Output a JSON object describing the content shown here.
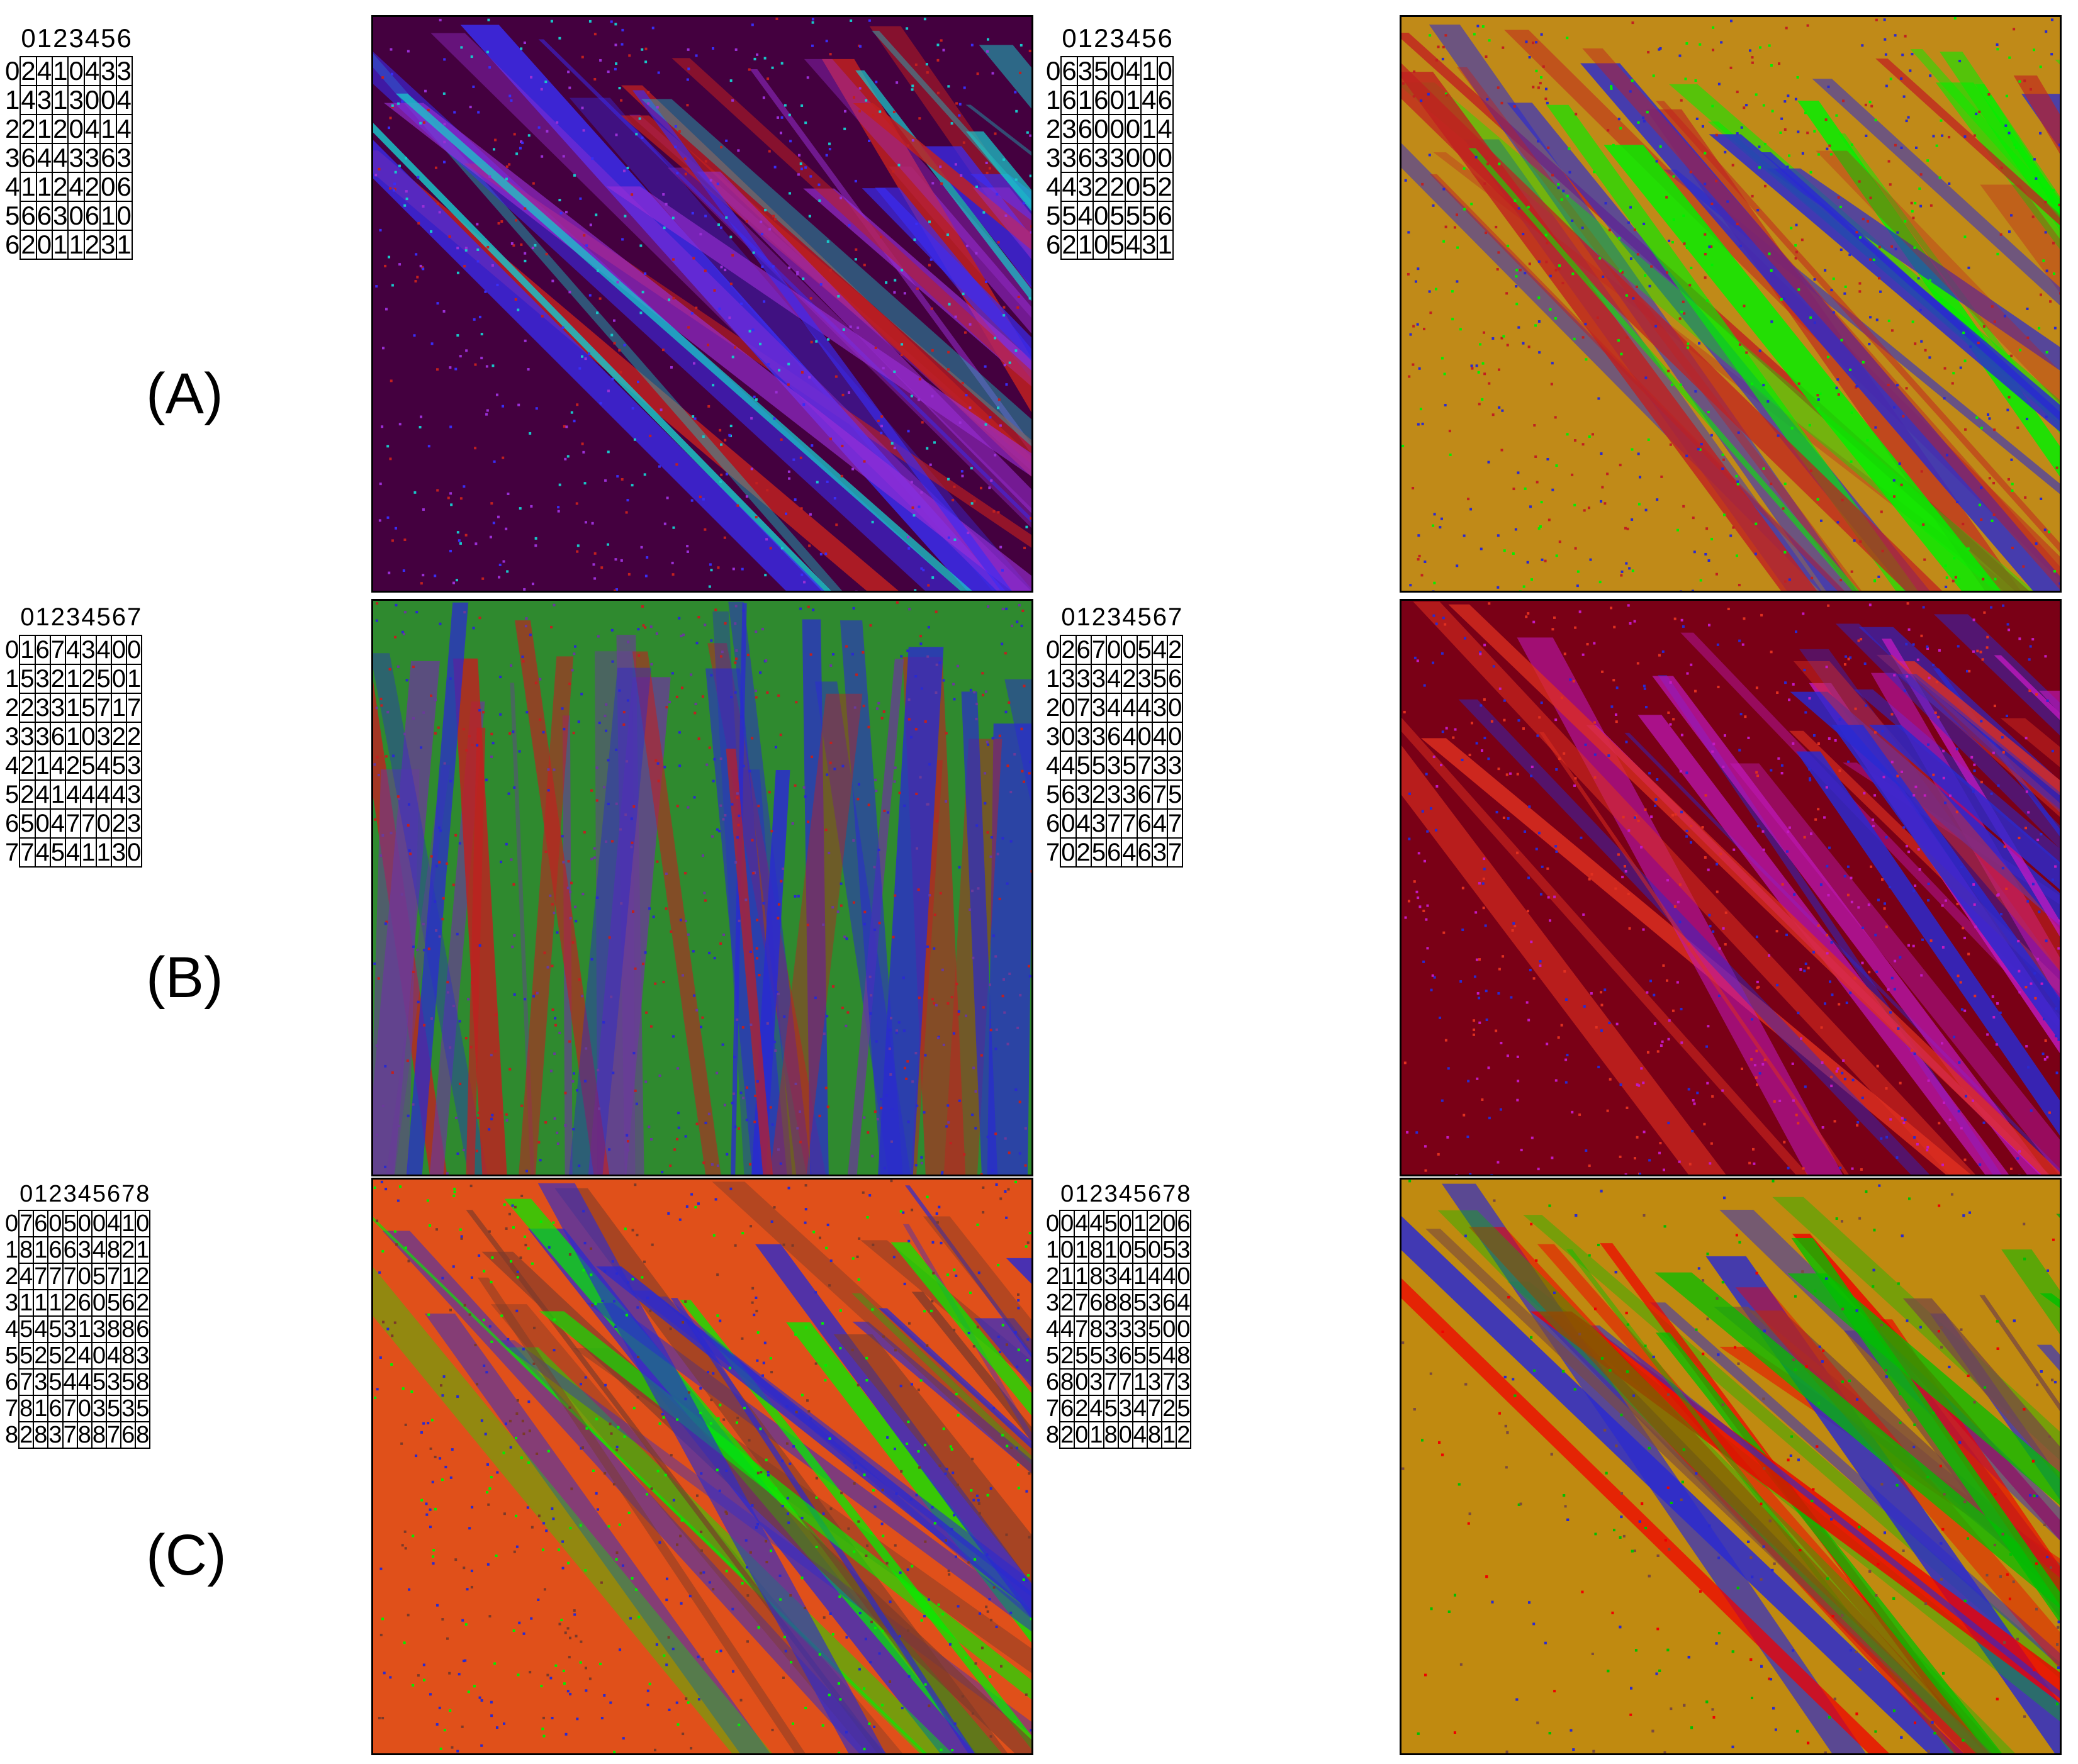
{
  "panels": [
    {
      "id": "A-left",
      "label": "(A)",
      "rule": {
        "columns": [
          "0",
          "1",
          "2",
          "3",
          "4",
          "5",
          "6"
        ],
        "rows": [
          "0",
          "1",
          "2",
          "3",
          "4",
          "5",
          "6"
        ],
        "cells": [
          [
            "2",
            "4",
            "1",
            "0",
            "4",
            "3",
            "3"
          ],
          [
            "4",
            "3",
            "1",
            "3",
            "0",
            "0",
            "4"
          ],
          [
            "2",
            "1",
            "2",
            "0",
            "4",
            "1",
            "4"
          ],
          [
            "6",
            "4",
            "4",
            "3",
            "3",
            "6",
            "3"
          ],
          [
            "1",
            "1",
            "2",
            "4",
            "2",
            "0",
            "6"
          ],
          [
            "6",
            "6",
            "3",
            "0",
            "6",
            "1",
            "0"
          ],
          [
            "2",
            "0",
            "1",
            "1",
            "2",
            "3",
            "1"
          ]
        ]
      },
      "ca": {
        "background": "#44003f",
        "accents": [
          "#9a2fd6",
          "#3a2df5",
          "#19c7c9",
          "#c12020"
        ],
        "icon": "sierpinski-pattern"
      }
    },
    {
      "id": "A-right",
      "label": "",
      "rule": {
        "columns": [
          "0",
          "1",
          "2",
          "3",
          "4",
          "5",
          "6"
        ],
        "rows": [
          "0",
          "1",
          "2",
          "3",
          "4",
          "5",
          "6"
        ],
        "cells": [
          [
            "6",
            "3",
            "5",
            "0",
            "4",
            "1",
            "0"
          ],
          [
            "6",
            "1",
            "6",
            "0",
            "1",
            "4",
            "6"
          ],
          [
            "3",
            "6",
            "0",
            "0",
            "0",
            "1",
            "4"
          ],
          [
            "3",
            "6",
            "3",
            "3",
            "0",
            "0",
            "0"
          ],
          [
            "4",
            "3",
            "2",
            "2",
            "0",
            "5",
            "2"
          ],
          [
            "5",
            "4",
            "0",
            "5",
            "5",
            "5",
            "6"
          ],
          [
            "2",
            "1",
            "0",
            "5",
            "4",
            "3",
            "1"
          ]
        ]
      },
      "ca": {
        "background": "#c08a18",
        "accents": [
          "#00f000",
          "#c02020",
          "#2a2ad0"
        ],
        "icon": "diagonal-bands-pattern"
      }
    },
    {
      "id": "B-left",
      "label": "(B)",
      "rule": {
        "columns": [
          "0",
          "1",
          "2",
          "3",
          "4",
          "5",
          "6",
          "7"
        ],
        "rows": [
          "0",
          "1",
          "2",
          "3",
          "4",
          "5",
          "6",
          "7"
        ],
        "cells": [
          [
            "1",
            "6",
            "7",
            "4",
            "3",
            "4",
            "0",
            "0"
          ],
          [
            "5",
            "3",
            "2",
            "1",
            "2",
            "5",
            "0",
            "1"
          ],
          [
            "2",
            "3",
            "3",
            "1",
            "5",
            "7",
            "1",
            "7"
          ],
          [
            "3",
            "3",
            "6",
            "1",
            "0",
            "3",
            "2",
            "2"
          ],
          [
            "2",
            "1",
            "4",
            "2",
            "5",
            "4",
            "5",
            "3"
          ],
          [
            "2",
            "4",
            "1",
            "4",
            "4",
            "4",
            "4",
            "3"
          ],
          [
            "5",
            "0",
            "4",
            "7",
            "7",
            "0",
            "2",
            "3"
          ],
          [
            "7",
            "4",
            "5",
            "4",
            "1",
            "1",
            "3",
            "0"
          ]
        ]
      },
      "ca": {
        "background": "#2f8a2f",
        "accents": [
          "#c02020",
          "#2a2ad0",
          "#6a3a9a"
        ],
        "icon": "vertical-streaks-pattern"
      }
    },
    {
      "id": "B-right",
      "label": "",
      "rule": {
        "columns": [
          "0",
          "1",
          "2",
          "3",
          "4",
          "5",
          "6",
          "7"
        ],
        "rows": [
          "0",
          "1",
          "2",
          "3",
          "4",
          "5",
          "6",
          "7"
        ],
        "cells": [
          [
            "2",
            "6",
            "7",
            "0",
            "0",
            "5",
            "4",
            "2"
          ],
          [
            "3",
            "3",
            "3",
            "4",
            "2",
            "3",
            "5",
            "6"
          ],
          [
            "0",
            "7",
            "3",
            "4",
            "4",
            "4",
            "3",
            "0"
          ],
          [
            "0",
            "3",
            "3",
            "6",
            "4",
            "0",
            "4",
            "0"
          ],
          [
            "4",
            "5",
            "5",
            "3",
            "5",
            "7",
            "3",
            "3"
          ],
          [
            "6",
            "3",
            "2",
            "3",
            "3",
            "6",
            "7",
            "5"
          ],
          [
            "0",
            "4",
            "3",
            "7",
            "7",
            "6",
            "4",
            "7"
          ],
          [
            "0",
            "2",
            "5",
            "6",
            "4",
            "6",
            "3",
            "7"
          ]
        ]
      },
      "ca": {
        "background": "#7a0016",
        "accents": [
          "#c21ac2",
          "#e03020",
          "#2a2ad0"
        ],
        "icon": "diagonal-stripes-pattern"
      }
    },
    {
      "id": "C-left",
      "label": "(C)",
      "rule": {
        "columns": [
          "0",
          "1",
          "2",
          "3",
          "4",
          "5",
          "6",
          "7",
          "8"
        ],
        "rows": [
          "0",
          "1",
          "2",
          "3",
          "4",
          "5",
          "6",
          "7",
          "8"
        ],
        "cells": [
          [
            "7",
            "6",
            "0",
            "5",
            "0",
            "0",
            "4",
            "1",
            "0"
          ],
          [
            "8",
            "1",
            "6",
            "6",
            "3",
            "4",
            "8",
            "2",
            "1"
          ],
          [
            "4",
            "7",
            "7",
            "7",
            "0",
            "5",
            "7",
            "1",
            "2"
          ],
          [
            "1",
            "1",
            "1",
            "2",
            "6",
            "0",
            "5",
            "6",
            "2"
          ],
          [
            "5",
            "4",
            "5",
            "3",
            "1",
            "3",
            "8",
            "8",
            "6"
          ],
          [
            "5",
            "2",
            "5",
            "2",
            "4",
            "0",
            "4",
            "8",
            "3"
          ],
          [
            "7",
            "3",
            "5",
            "4",
            "4",
            "5",
            "3",
            "5",
            "8"
          ],
          [
            "8",
            "1",
            "6",
            "7",
            "0",
            "3",
            "5",
            "3",
            "5"
          ],
          [
            "2",
            "8",
            "3",
            "7",
            "8",
            "8",
            "7",
            "6",
            "8"
          ]
        ]
      },
      "ca": {
        "background": "#e0501a",
        "accents": [
          "#00f000",
          "#2a2ad0",
          "#7a3a2a"
        ],
        "icon": "chaotic-pattern"
      }
    },
    {
      "id": "C-right",
      "label": "",
      "rule": {
        "columns": [
          "0",
          "1",
          "2",
          "3",
          "4",
          "5",
          "6",
          "7",
          "8"
        ],
        "rows": [
          "0",
          "1",
          "2",
          "3",
          "4",
          "5",
          "6",
          "7",
          "8"
        ],
        "cells": [
          [
            "0",
            "4",
            "4",
            "5",
            "0",
            "1",
            "2",
            "0",
            "6"
          ],
          [
            "0",
            "1",
            "8",
            "1",
            "0",
            "5",
            "0",
            "5",
            "3"
          ],
          [
            "1",
            "1",
            "8",
            "3",
            "4",
            "1",
            "4",
            "4",
            "0"
          ],
          [
            "2",
            "7",
            "6",
            "8",
            "8",
            "5",
            "3",
            "6",
            "4"
          ],
          [
            "4",
            "7",
            "8",
            "3",
            "3",
            "3",
            "5",
            "0",
            "0"
          ],
          [
            "2",
            "5",
            "5",
            "3",
            "6",
            "5",
            "5",
            "4",
            "8"
          ],
          [
            "8",
            "0",
            "3",
            "7",
            "7",
            "1",
            "3",
            "7",
            "3"
          ],
          [
            "6",
            "2",
            "4",
            "5",
            "3",
            "4",
            "7",
            "2",
            "5"
          ],
          [
            "2",
            "0",
            "1",
            "8",
            "0",
            "4",
            "8",
            "1",
            "2"
          ]
        ]
      },
      "ca": {
        "background": "#c08a10",
        "accents": [
          "#f00000",
          "#2a2ad0",
          "#00c000",
          "#7a4a40"
        ],
        "icon": "triangles-pattern"
      }
    }
  ]
}
